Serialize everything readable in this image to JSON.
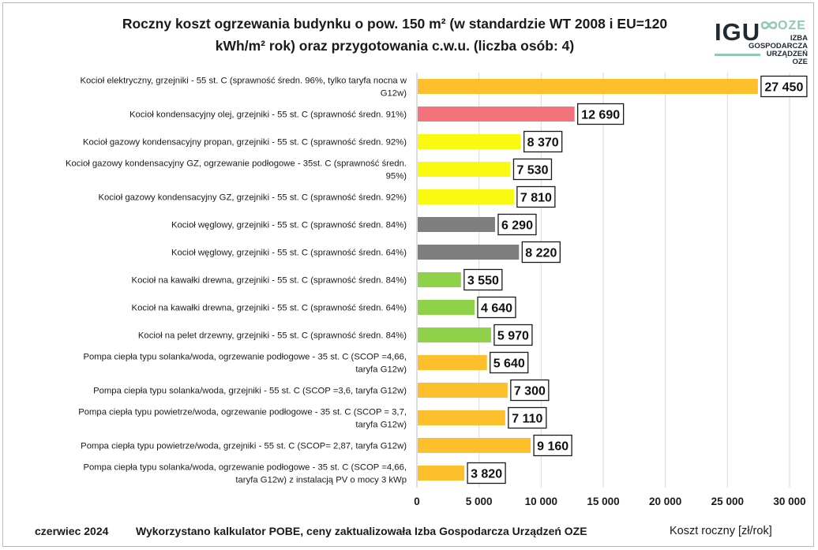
{
  "title_line1": "Roczny koszt ogrzewania budynku  o pow. 150 m² (w standardzie WT 2008 i EU=120",
  "title_line2": "kWh/m² rok) oraz przygotowania c.w.u. (liczba osób: 4)",
  "logo": {
    "igu": "IGU",
    "oze": "OZE",
    "line1": "IZBA",
    "line2": "GOSPODARCZA",
    "line3": "URZĄDZEŃ",
    "line4": "OZE"
  },
  "footer": {
    "date": "czerwiec 2024",
    "source": "Wykorzystano kalkulator POBE, ceny zaktualizowała Izba Gospodarcza Urządzeń OZE",
    "axis_label": "Koszt roczny [zł/rok]"
  },
  "colors": {
    "orange": "#fdbf2b",
    "red": "#f3727c",
    "yellow": "#fafa10",
    "gray": "#7f7f7f",
    "green": "#8fd24a",
    "grid": "#d9d9d9"
  },
  "chart_data": {
    "type": "bar",
    "orientation": "horizontal",
    "title": "Roczny koszt ogrzewania budynku  o pow. 150 m² (w standardzie WT 2008 i EU=120 kWh/m² rok) oraz przygotowania c.w.u. (liczba osób: 4)",
    "xlabel": "Koszt roczny [zł/rok]",
    "xlim": [
      0,
      30000
    ],
    "ticks": [
      0,
      5000,
      10000,
      15000,
      20000,
      25000,
      30000
    ],
    "tick_labels": [
      "0",
      "5 000",
      "10 000",
      "15 000",
      "20 000",
      "25 000",
      "30 000"
    ],
    "grid": true,
    "categories": [
      {
        "label": [
          "Kocioł  elektryczny,  grzejniki - 55 st. C  (sprawność średn. 96%, tylko taryfa nocna w",
          "G12w)"
        ],
        "value": 27450,
        "value_label": "27 450",
        "color": "orange"
      },
      {
        "label": [
          "Kocioł  kondensacyjny olej,  grzejniki - 55 st. C  (sprawność średn. 91%)"
        ],
        "value": 12690,
        "value_label": "12 690",
        "color": "red"
      },
      {
        "label": [
          "Kocioł gazowy kondensacyjny propan, grzejniki - 55 st. C  (sprawność średn. 92%)"
        ],
        "value": 8370,
        "value_label": "8 370",
        "color": "yellow"
      },
      {
        "label": [
          "Kocioł gazowy kondensacyjny GZ, ogrzewanie podłogowe - 35st. C   (sprawność średn.",
          "95%)"
        ],
        "value": 7530,
        "value_label": "7 530",
        "color": "yellow"
      },
      {
        "label": [
          "Kocioł gazowy kondensacyjny GZ, grzejniki - 55 st. C   (sprawność średn. 92%)"
        ],
        "value": 7810,
        "value_label": "7 810",
        "color": "yellow"
      },
      {
        "label": [
          "Kocioł węglowy,  grzejniki - 55 st. C   (sprawność średn. 84%)"
        ],
        "value": 6290,
        "value_label": "6 290",
        "color": "gray"
      },
      {
        "label": [
          "Kocioł węglowy,  grzejniki - 55 st. C  (sprawność średn. 64%)"
        ],
        "value": 8220,
        "value_label": "8 220",
        "color": "gray"
      },
      {
        "label": [
          "Kocioł na kawałki drewna, grzejniki - 55 st. C (sprawność średn. 84%)"
        ],
        "value": 3550,
        "value_label": "3 550",
        "color": "green"
      },
      {
        "label": [
          "Kocioł na kawałki drewna, grzejniki - 55 st. C  (sprawność średn. 64%)"
        ],
        "value": 4640,
        "value_label": "4 640",
        "color": "green"
      },
      {
        "label": [
          "Kocioł na pelet drzewny, grzejniki - 55 st. C (sprawność średn. 84%)"
        ],
        "value": 5970,
        "value_label": "5 970",
        "color": "green"
      },
      {
        "label": [
          "Pompa ciepła typu solanka/woda, ogrzewanie podłogowe - 35 st. C  (SCOP =4,66,",
          "taryfa G12w)"
        ],
        "value": 5640,
        "value_label": "5 640",
        "color": "orange"
      },
      {
        "label": [
          "Pompa ciepła typu solanka/woda, grzejniki - 55 st. C (SCOP =3,6, taryfa G12w)"
        ],
        "value": 7300,
        "value_label": "7 300",
        "color": "orange"
      },
      {
        "label": [
          "Pompa ciepła typu powietrze/woda, ogrzewanie podłogowe - 35 st. C (SCOP = 3,7,",
          "taryfa G12w)"
        ],
        "value": 7110,
        "value_label": "7 110",
        "color": "orange"
      },
      {
        "label": [
          "Pompa ciepła typu powietrze/woda, grzejniki - 55 st. C (SCOP= 2,87, taryfa G12w)"
        ],
        "value": 9160,
        "value_label": "9 160",
        "color": "orange"
      },
      {
        "label": [
          "Pompa ciepła typu solanka/woda, ogrzewanie podłogowe - 35 st. C  (SCOP =4,66,",
          "taryfa G12w) z instalacją PV o mocy 3 kWp"
        ],
        "value": 3820,
        "value_label": "3 820",
        "color": "orange"
      }
    ]
  }
}
